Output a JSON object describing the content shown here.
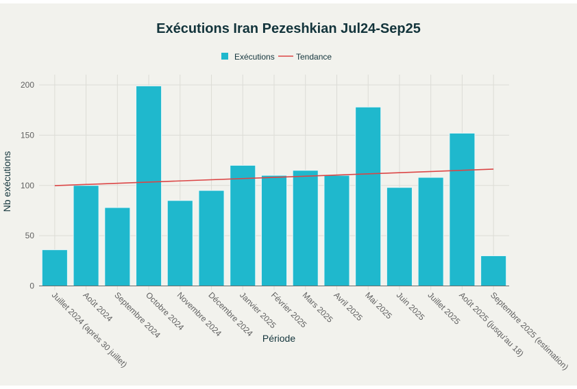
{
  "chart_data": {
    "type": "bar",
    "title": "Exécutions Iran Pezeshkian Jul24-Sep25",
    "xlabel": "Période",
    "ylabel": "Nb exécutions",
    "ylim": [
      0,
      210
    ],
    "yticks": [
      0,
      50,
      100,
      150,
      200
    ],
    "grid": true,
    "legend_position": "top-center",
    "categories": [
      "Juillet 2024 (après 30 juillet)",
      "Août 2024",
      "Septembre 2024",
      "Octobre 2024",
      "Novembre 2024",
      "Décembre 2024",
      "Janvier 2025",
      "Février 2025",
      "Mars 2025",
      "Avril 2025",
      "Mai 2025",
      "Juin 2025",
      "Juillet 2025",
      "Août 2025 (jusqu'au 18)",
      "Septembre 2025 (estimation)"
    ],
    "series": [
      {
        "name": "Exécutions",
        "type": "bar",
        "color": "#1fb8cd",
        "values": [
          36,
          100,
          78,
          199,
          85,
          95,
          120,
          110,
          115,
          110,
          178,
          98,
          108,
          152,
          30
        ]
      },
      {
        "name": "Tendance",
        "type": "line",
        "color": "#db4545",
        "values": [
          99.8,
          101.0,
          102.2,
          103.3,
          104.5,
          105.7,
          106.8,
          108.0,
          109.2,
          110.3,
          111.5,
          112.7,
          113.8,
          115.0,
          116.2
        ]
      }
    ]
  }
}
